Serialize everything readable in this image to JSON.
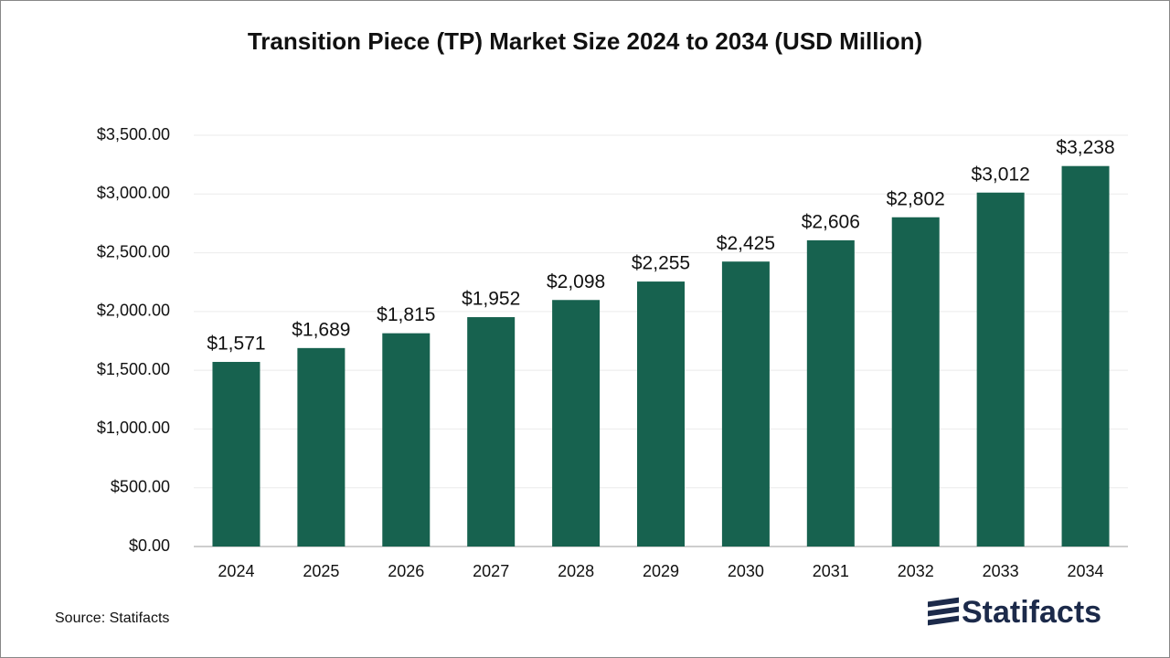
{
  "chart_data": {
    "type": "bar",
    "title": "Transition Piece (TP) Market Size 2024 to 2034 (USD Million)",
    "categories": [
      "2024",
      "2025",
      "2026",
      "2027",
      "2028",
      "2029",
      "2030",
      "2031",
      "2032",
      "2033",
      "2034"
    ],
    "values": [
      1571,
      1689,
      1815,
      1952,
      2098,
      2255,
      2425,
      2606,
      2802,
      3012,
      3238
    ],
    "value_labels": [
      "$1,571",
      "$1,689",
      "$1,815",
      "$1,952",
      "$2,098",
      "$2,255",
      "$2,425",
      "$2,606",
      "$2,802",
      "$3,012",
      "$3,238"
    ],
    "color": "#17624f",
    "ylim": [
      0,
      3500
    ],
    "yticks": [
      {
        "value": 0,
        "label": "$0.00"
      },
      {
        "value": 500,
        "label": "$500.00"
      },
      {
        "value": 1000,
        "label": "$1,000.00"
      },
      {
        "value": 1500,
        "label": "$1,500.00"
      },
      {
        "value": 2000,
        "label": "$2,000.00"
      },
      {
        "value": 2500,
        "label": "$2,500.00"
      },
      {
        "value": 3000,
        "label": "$3,000.00"
      },
      {
        "value": 3500,
        "label": "$3,500.00"
      }
    ],
    "grid": true,
    "source": "Source: Statifacts",
    "brand": "Statifacts"
  }
}
